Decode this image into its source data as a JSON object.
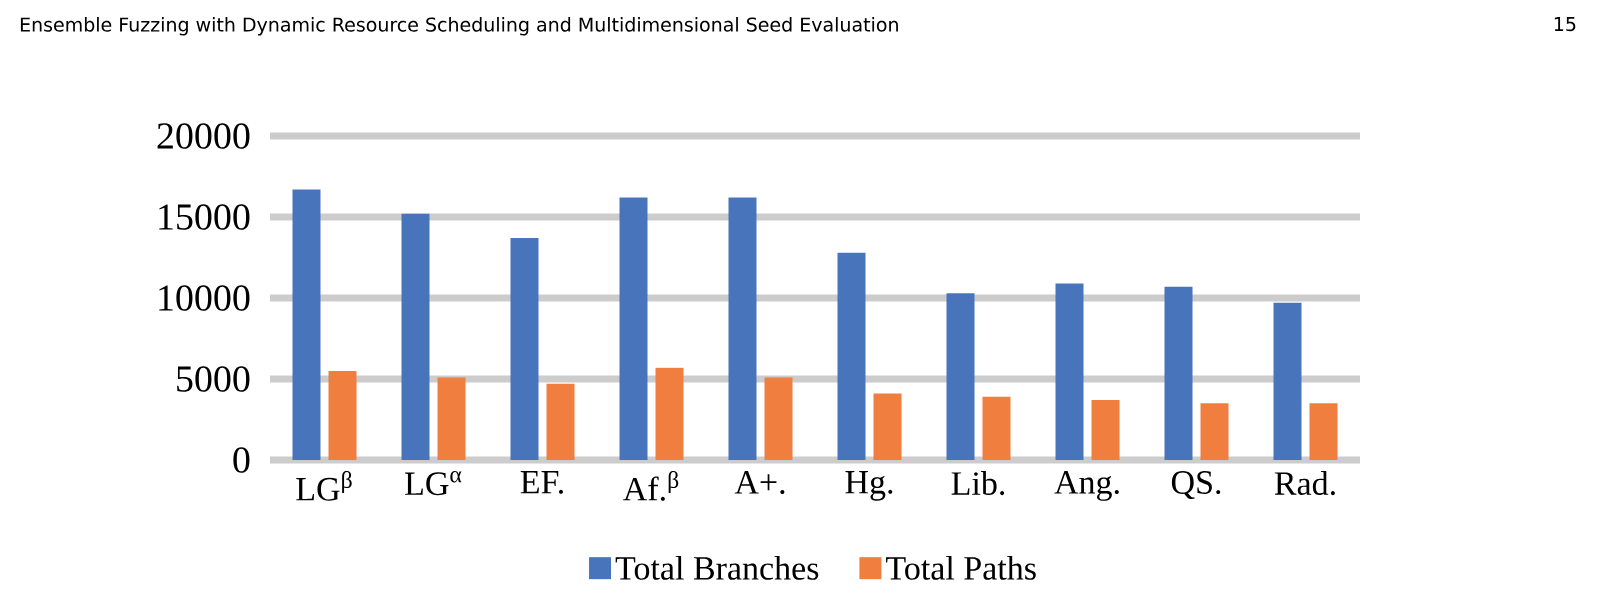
{
  "chart_data": {
    "type": "bar",
    "title": "Ensemble Fuzzing with Dynamic Resource Scheduling and Multidimensional Seed Evaluation",
    "annotations": [
      "15"
    ],
    "categories": [
      "LG$^{β}$",
      "LG$^{α}$",
      "EF.",
      "Af.$^{β}$",
      "A+.",
      "Hg.",
      "Lib.",
      "Ang.",
      "QS.",
      "Rad."
    ],
    "series": [
      {
        "name": "Total Branches",
        "color": "#4874bb",
        "values": [
          16700,
          15200,
          13700,
          16200,
          16200,
          12800,
          10300,
          10900,
          10700,
          9700
        ]
      },
      {
        "name": "Total Paths",
        "color": "#f07f3f",
        "values": [
          5500,
          5100,
          4700,
          5700,
          5100,
          4100,
          3900,
          3700,
          3500,
          3500
        ]
      }
    ],
    "ylim": [
      0,
      20000
    ],
    "yticks": [
      0,
      5000,
      10000,
      15000,
      20000
    ],
    "grid": "y",
    "legend": "bottom"
  }
}
